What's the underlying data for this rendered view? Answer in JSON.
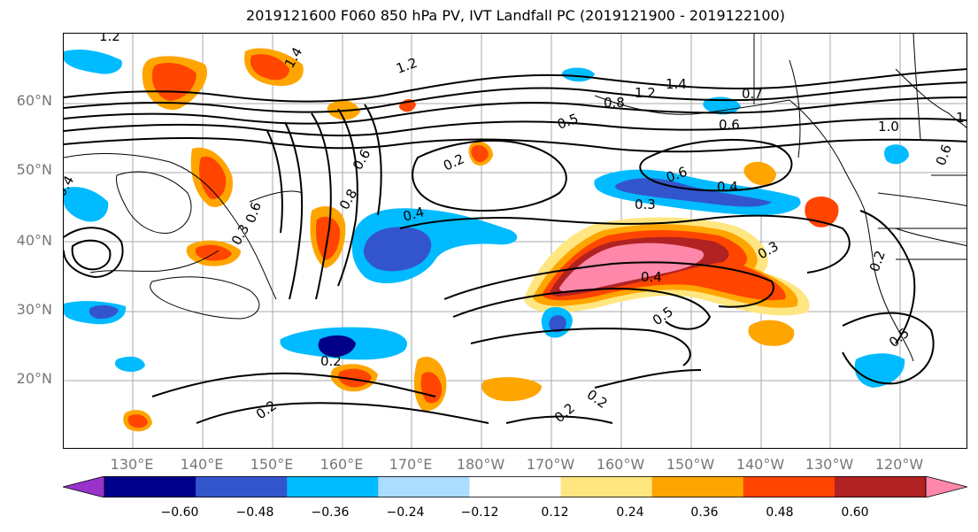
{
  "title": "2019121600 F060 850 hPa PV, IVT Landfall PC (2019121900 - 2019122100)",
  "lat_labels": [
    "60°N",
    "50°N",
    "40°N",
    "30°N",
    "20°N"
  ],
  "lon_labels": [
    "130°E",
    "140°E",
    "150°E",
    "160°E",
    "170°E",
    "180°W",
    "170°W",
    "160°W",
    "150°W",
    "140°W",
    "130°W",
    "120°W"
  ],
  "contour_labels": [
    "1.2",
    "1.4",
    "1.2",
    "0.8",
    "1.2",
    "1.4",
    "0.7",
    "0.5",
    "0.6",
    "1.0",
    "1",
    "0.2",
    "0.6",
    "0.4",
    "0.4",
    "0.3",
    "0.3",
    "0.4",
    "0.5",
    "0.6",
    "0.2",
    "0.2",
    "0.2",
    "0.2",
    "0.5",
    "0.4",
    "0.2",
    "0.6",
    "0.8",
    "0.3",
    "0.6"
  ],
  "colorbar": {
    "ticks": [
      "−0.60",
      "−0.48",
      "−0.36",
      "−0.24",
      "−0.12",
      "0.12",
      "0.24",
      "0.36",
      "0.48",
      "0.60"
    ],
    "colors": [
      "#9933cc",
      "#00008b",
      "#3355cc",
      "#00bbff",
      "#aaddff",
      "#ffffff",
      "#ffe680",
      "#ffa500",
      "#ff4500",
      "#b22222",
      "#ff88aa"
    ]
  }
}
